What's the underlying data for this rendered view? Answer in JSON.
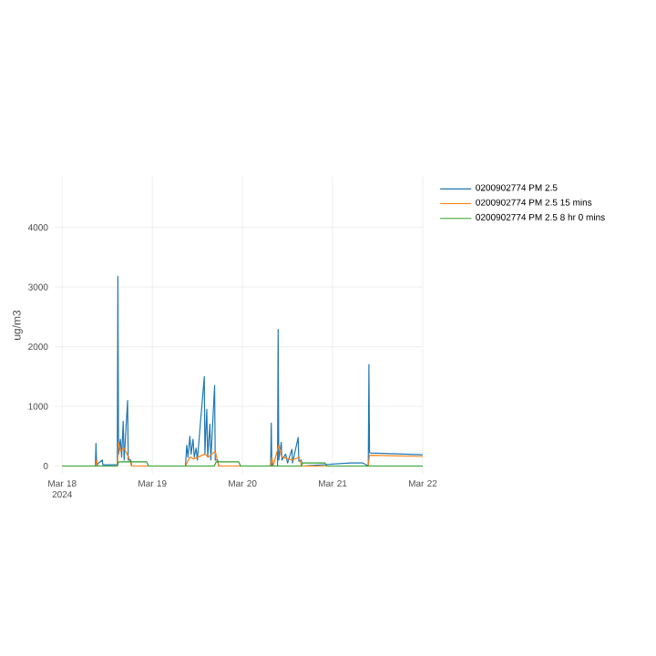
{
  "chart_data": {
    "type": "line",
    "ylabel": "ug/m3",
    "xlim": [
      "2024-03-17T22:00",
      "2024-03-22T00:00"
    ],
    "ylim": [
      -130,
      4850
    ],
    "xticks": [
      {
        "value": "2024-03-18",
        "label": "Mar 18 2024"
      },
      {
        "value": "2024-03-19",
        "label": "Mar 19"
      },
      {
        "value": "2024-03-20",
        "label": "Mar 20"
      },
      {
        "value": "2024-03-21",
        "label": "Mar 21"
      },
      {
        "value": "2024-03-22",
        "label": "Mar 22"
      }
    ],
    "yticks": [
      0,
      1000,
      2000,
      3000,
      4000
    ],
    "grid": true,
    "legend": "top right",
    "series": [
      {
        "name": "0200902774 PM 2.5",
        "color": "#1f77b4",
        "x": [
          "2024-03-18T00:00",
          "2024-03-18T08:50",
          "2024-03-18T09:00",
          "2024-03-18T09:10",
          "2024-03-18T10:40",
          "2024-03-18T10:50",
          "2024-03-18T14:40",
          "2024-03-18T14:50",
          "2024-03-18T15:00",
          "2024-03-18T15:30",
          "2024-03-18T15:50",
          "2024-03-18T16:15",
          "2024-03-18T16:30",
          "2024-03-18T17:25",
          "2024-03-18T17:35",
          "2024-03-18T18:15",
          "2024-03-18T18:30",
          "2024-03-19T08:50",
          "2024-03-19T09:10",
          "2024-03-19T09:30",
          "2024-03-19T10:00",
          "2024-03-19T10:20",
          "2024-03-19T10:50",
          "2024-03-19T11:10",
          "2024-03-19T11:40",
          "2024-03-19T12:00",
          "2024-03-19T13:50",
          "2024-03-19T14:00",
          "2024-03-19T14:30",
          "2024-03-19T14:45",
          "2024-03-19T15:20",
          "2024-03-19T15:35",
          "2024-03-19T16:35",
          "2024-03-19T16:45",
          "2024-03-19T17:25",
          "2024-03-19T17:40",
          "2024-03-20T07:30",
          "2024-03-20T07:40",
          "2024-03-20T07:50",
          "2024-03-20T09:20",
          "2024-03-20T09:30",
          "2024-03-20T09:40",
          "2024-03-20T10:20",
          "2024-03-20T10:30",
          "2024-03-20T11:30",
          "2024-03-20T12:00",
          "2024-03-20T13:10",
          "2024-03-20T13:20",
          "2024-03-20T14:50",
          "2024-03-20T15:00",
          "2024-03-20T15:40",
          "2024-03-20T15:50",
          "2024-03-21T04:50",
          "2024-03-21T08:05",
          "2024-03-21T09:30",
          "2024-03-21T09:40",
          "2024-03-21T09:50",
          "2024-03-22T00:00"
        ],
        "values": [
          0,
          0,
          380,
          20,
          100,
          20,
          20,
          3180,
          200,
          450,
          150,
          750,
          100,
          1100,
          100,
          100,
          0,
          0,
          350,
          150,
          500,
          200,
          450,
          150,
          300,
          100,
          1500,
          200,
          950,
          150,
          700,
          100,
          1350,
          100,
          100,
          0,
          0,
          720,
          0,
          0,
          2290,
          100,
          400,
          100,
          200,
          50,
          280,
          50,
          480,
          80,
          100,
          0,
          50,
          50,
          0,
          1700,
          220,
          190
        ]
      },
      {
        "name": "0200902774 PM 2.5 15 mins",
        "color": "#ff7f0e",
        "x": [
          "2024-03-18T00:00",
          "2024-03-18T08:50",
          "2024-03-18T09:10",
          "2024-03-18T09:30",
          "2024-03-18T14:40",
          "2024-03-18T15:00",
          "2024-03-18T15:30",
          "2024-03-18T16:30",
          "2024-03-18T17:40",
          "2024-03-18T18:30",
          "2024-03-19T08:50",
          "2024-03-19T10:00",
          "2024-03-19T11:00",
          "2024-03-19T14:00",
          "2024-03-19T15:00",
          "2024-03-19T16:45",
          "2024-03-19T17:40",
          "2024-03-20T07:30",
          "2024-03-20T07:50",
          "2024-03-20T08:10",
          "2024-03-20T09:40",
          "2024-03-20T10:30",
          "2024-03-20T13:20",
          "2024-03-20T15:00",
          "2024-03-20T15:50",
          "2024-03-21T09:30",
          "2024-03-21T09:50",
          "2024-03-22T00:00"
        ],
        "values": [
          0,
          0,
          100,
          0,
          0,
          400,
          250,
          300,
          150,
          0,
          0,
          150,
          120,
          200,
          150,
          250,
          0,
          0,
          150,
          0,
          350,
          150,
          100,
          150,
          0,
          0,
          180,
          160
        ]
      },
      {
        "name": "0200902774 PM 2.5 8 hr 0 mins",
        "color": "#2ca02c",
        "x": [
          "2024-03-18T00:00",
          "2024-03-18T14:40",
          "2024-03-18T15:00",
          "2024-03-18T22:30",
          "2024-03-18T23:00",
          "2024-03-19T16:30",
          "2024-03-19T17:00",
          "2024-03-19T23:00",
          "2024-03-19T23:30",
          "2024-03-20T15:40",
          "2024-03-20T16:00",
          "2024-03-20T22:00",
          "2024-03-20T22:30",
          "2024-03-22T00:00"
        ],
        "values": [
          0,
          0,
          70,
          70,
          0,
          0,
          70,
          70,
          0,
          0,
          50,
          50,
          0,
          0
        ]
      }
    ]
  }
}
